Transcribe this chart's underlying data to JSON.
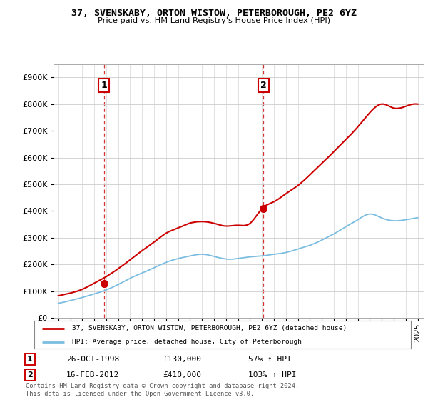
{
  "title": "37, SVENSKABY, ORTON WISTOW, PETERBOROUGH, PE2 6YZ",
  "subtitle": "Price paid vs. HM Land Registry's House Price Index (HPI)",
  "sale1_date": "26-OCT-1998",
  "sale1_price": 130000,
  "sale1_pct": "57% ↑ HPI",
  "sale2_date": "16-FEB-2012",
  "sale2_price": 410000,
  "sale2_pct": "103% ↑ HPI",
  "legend_line1": "37, SVENSKABY, ORTON WISTOW, PETERBOROUGH, PE2 6YZ (detached house)",
  "legend_line2": "HPI: Average price, detached house, City of Peterborough",
  "footer": "Contains HM Land Registry data © Crown copyright and database right 2024.\nThis data is licensed under the Open Government Licence v3.0.",
  "hpi_color": "#7bbde0",
  "price_color": "#cc0000",
  "sale1_x": 1998.82,
  "sale2_x": 2012.12,
  "ylim_max": 950000,
  "background_color": "#ffffff",
  "hpi_base_values": [
    55000,
    65000,
    77000,
    90000,
    105000,
    125000,
    148000,
    168000,
    188000,
    208000,
    222000,
    232000,
    238000,
    230000,
    220000,
    222000,
    228000,
    232000,
    238000,
    245000,
    258000,
    272000,
    292000,
    315000,
    342000,
    368000,
    390000,
    375000,
    365000,
    368000,
    375000
  ],
  "hpi_years": [
    1995,
    1996,
    1997,
    1998,
    1999,
    2000,
    2001,
    2002,
    2003,
    2004,
    2005,
    2006,
    2007,
    2008,
    2009,
    2010,
    2011,
    2012,
    2013,
    2014,
    2015,
    2016,
    2017,
    2018,
    2019,
    2020,
    2021,
    2022,
    2023,
    2024,
    2025
  ],
  "price_base_values": [
    83000,
    93000,
    107000,
    130000,
    155000,
    185000,
    218000,
    253000,
    285000,
    318000,
    338000,
    356000,
    362000,
    355000,
    345000,
    348000,
    355000,
    410000,
    435000,
    465000,
    495000,
    535000,
    578000,
    622000,
    668000,
    715000,
    768000,
    800000,
    785000,
    792000,
    800000
  ],
  "price_years": [
    1995,
    1996,
    1997,
    1998,
    1999,
    2000,
    2001,
    2002,
    2003,
    2004,
    2005,
    2006,
    2007,
    2008,
    2009,
    2010,
    2011,
    2012,
    2013,
    2014,
    2015,
    2016,
    2017,
    2018,
    2019,
    2020,
    2021,
    2022,
    2023,
    2024,
    2025
  ]
}
